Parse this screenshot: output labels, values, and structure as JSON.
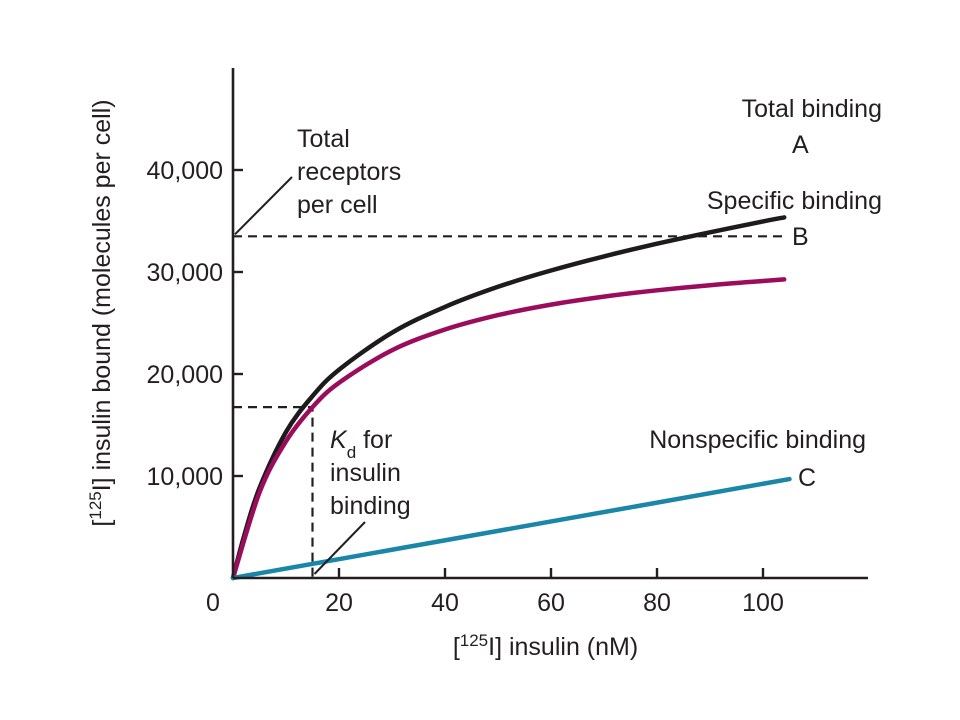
{
  "chart_data": {
    "type": "line",
    "title": "",
    "xlabel_pre": "[",
    "xlabel_sup": "125",
    "xlabel_post": "I] insulin (nM)",
    "ylabel_pre": "[",
    "ylabel_sup": "125",
    "ylabel_post": "I] insulin bound (molecules per cell)",
    "xlim": [
      0,
      120
    ],
    "ylim": [
      0,
      50000
    ],
    "grid": false,
    "x_ticks": [
      {
        "value": 20,
        "label": "20"
      },
      {
        "value": 40,
        "label": "40"
      },
      {
        "value": 60,
        "label": "60"
      },
      {
        "value": 80,
        "label": "80"
      },
      {
        "value": 100,
        "label": "100"
      }
    ],
    "y_ticks": [
      {
        "value": 10000,
        "label": "10,000"
      },
      {
        "value": 20000,
        "label": "20,000"
      },
      {
        "value": 30000,
        "label": "30,000"
      },
      {
        "value": 40000,
        "label": "40,000"
      }
    ],
    "origin_label": "0",
    "bmax": 33500,
    "kd": 15,
    "series": [
      {
        "name": "Total binding",
        "letter": "A",
        "color": "#1e1b1c",
        "x": [
          0,
          2,
          5,
          10,
          15,
          20,
          30,
          40,
          50,
          60,
          70,
          80,
          90,
          100,
          104
        ],
        "values": [
          0,
          3950,
          8820,
          14310,
          17830,
          20420,
          24050,
          26580,
          28550,
          30150,
          31530,
          32770,
          33890,
          34960,
          35350
        ]
      },
      {
        "name": "Specific binding",
        "letter": "B",
        "color": "#9c0c5c",
        "x": [
          0,
          5,
          10,
          15,
          20,
          30,
          40,
          50,
          60,
          70,
          80,
          90,
          100,
          104
        ],
        "values": [
          0,
          8380,
          13400,
          16750,
          19140,
          22330,
          24360,
          25770,
          26800,
          27590,
          28210,
          28710,
          29120,
          29270
        ]
      },
      {
        "name": "Nonspecific binding",
        "letter": "C",
        "color": "#1a86a8",
        "x": [
          0,
          105
        ],
        "values": [
          0,
          9700
        ]
      }
    ],
    "annotations": {
      "total_receptors": [
        "Total",
        "receptors",
        "per cell"
      ],
      "kd_symbol": "K",
      "kd_subscript": "d",
      "kd_rest": " for",
      "kd_lines": [
        "insulin",
        "binding"
      ]
    }
  }
}
